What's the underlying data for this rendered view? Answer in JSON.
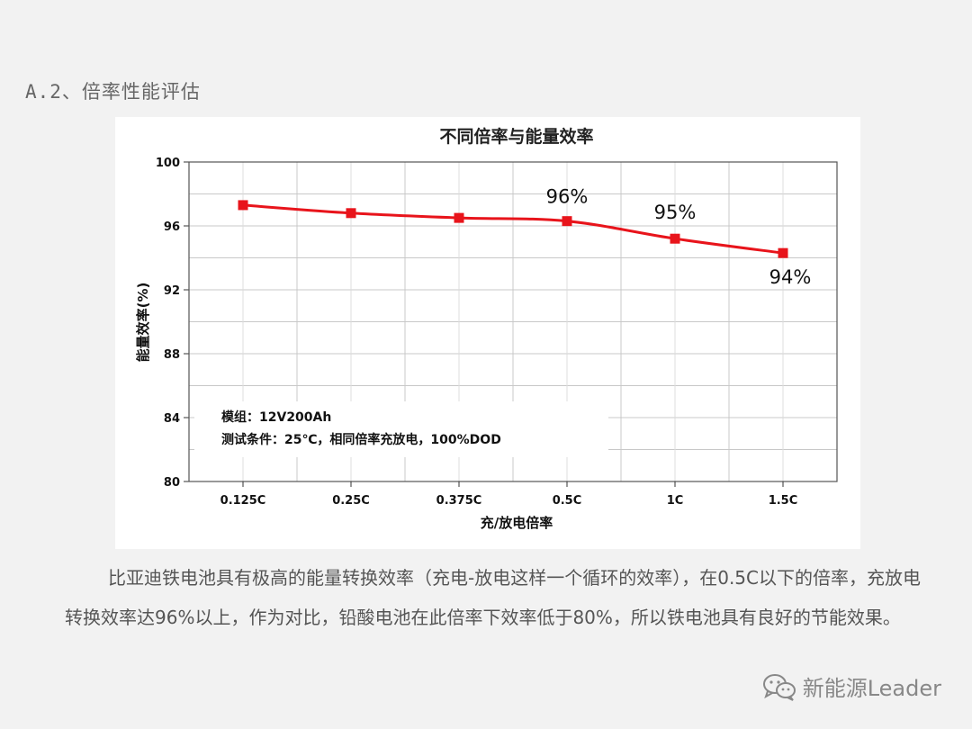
{
  "heading": "A.2、倍率性能评估",
  "chart_data": {
    "type": "line",
    "title": "不同倍率与能量效率",
    "xlabel": "充/放电倍率",
    "ylabel": "能量效率(%)",
    "categories": [
      "0.125C",
      "0.25C",
      "0.375C",
      "0.5C",
      "1C",
      "1.5C"
    ],
    "series": [
      {
        "values": [
          97.3,
          96.8,
          96.5,
          96.3,
          95.2,
          94.3
        ],
        "color": "#e8141b"
      }
    ],
    "ylim": [
      80,
      100
    ],
    "yticks": [
      100,
      96,
      92,
      88,
      84,
      80
    ],
    "grid": true,
    "data_labels": [
      {
        "index": 3,
        "text": "96%"
      },
      {
        "index": 4,
        "text": "95%"
      },
      {
        "index": 5,
        "text": "94%"
      }
    ],
    "annotation": {
      "line1": "模组：12V200Ah",
      "line2": "测试条件：25℃，相同倍率充放电，100%DOD"
    }
  },
  "body_text": "比亚迪铁电池具有极高的能量转换效率（充电-放电这样一个循环的效率），在0.5C以下的倍率，充放电转换效率达96%以上，作为对比，铅酸电池在此倍率下效率低于80%，所以铁电池具有良好的节能效果。",
  "watermark": {
    "text": "新能源Leader",
    "icon": "wechat-icon"
  }
}
